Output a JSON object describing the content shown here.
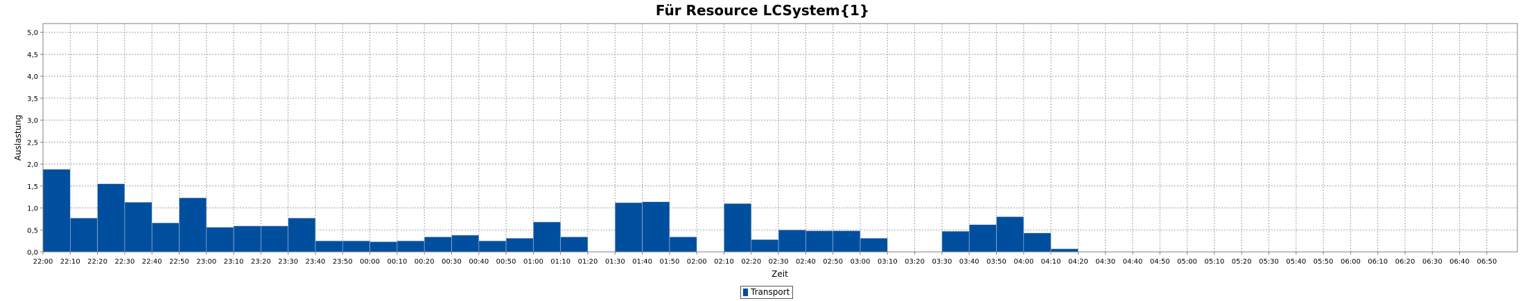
{
  "chart_data": {
    "type": "bar",
    "title": "Für Resource LCSystem{1}",
    "xlabel": "Zeit",
    "ylabel": "Auslastung",
    "ylim": [
      0,
      5.2
    ],
    "yticks": [
      "0,0",
      "0,5",
      "1,0",
      "1,5",
      "2,0",
      "2,5",
      "3,0",
      "3,5",
      "4,0",
      "4,5",
      "5,0"
    ],
    "grid": true,
    "legend_position": "bottom-center",
    "categories": [
      "22:00",
      "22:10",
      "22:20",
      "22:30",
      "22:40",
      "22:50",
      "23:00",
      "23:10",
      "23:20",
      "23:30",
      "23:40",
      "23:50",
      "00:00",
      "00:10",
      "00:20",
      "00:30",
      "00:40",
      "00:50",
      "01:00",
      "01:10",
      "01:20",
      "01:30",
      "01:40",
      "01:50",
      "02:00",
      "02:10",
      "02:20",
      "02:30",
      "02:40",
      "02:50",
      "03:00",
      "03:10",
      "03:20",
      "03:30",
      "03:40",
      "03:50",
      "04:00",
      "04:10",
      "04:20",
      "04:30",
      "04:40",
      "04:50",
      "05:00",
      "05:10",
      "05:20",
      "05:30",
      "05:40",
      "05:50",
      "06:00",
      "06:10",
      "06:20",
      "06:30",
      "06:40",
      "06:50"
    ],
    "series": [
      {
        "name": "Transport",
        "color": "#004f9f",
        "values": [
          1.88,
          0.77,
          1.55,
          1.13,
          0.66,
          1.23,
          0.56,
          0.59,
          0.59,
          0.77,
          0.25,
          0.25,
          0.23,
          0.25,
          0.34,
          0.38,
          0.25,
          0.31,
          0.68,
          0.34,
          0,
          1.12,
          1.14,
          0.34,
          0,
          1.1,
          0.28,
          0.5,
          0.48,
          0.48,
          0.31,
          0,
          0,
          0.47,
          0.62,
          0.8,
          0.43,
          0.07,
          0,
          0,
          0,
          0,
          0,
          0,
          0,
          0,
          0,
          0,
          0,
          0,
          0,
          0,
          0,
          0
        ]
      }
    ]
  }
}
